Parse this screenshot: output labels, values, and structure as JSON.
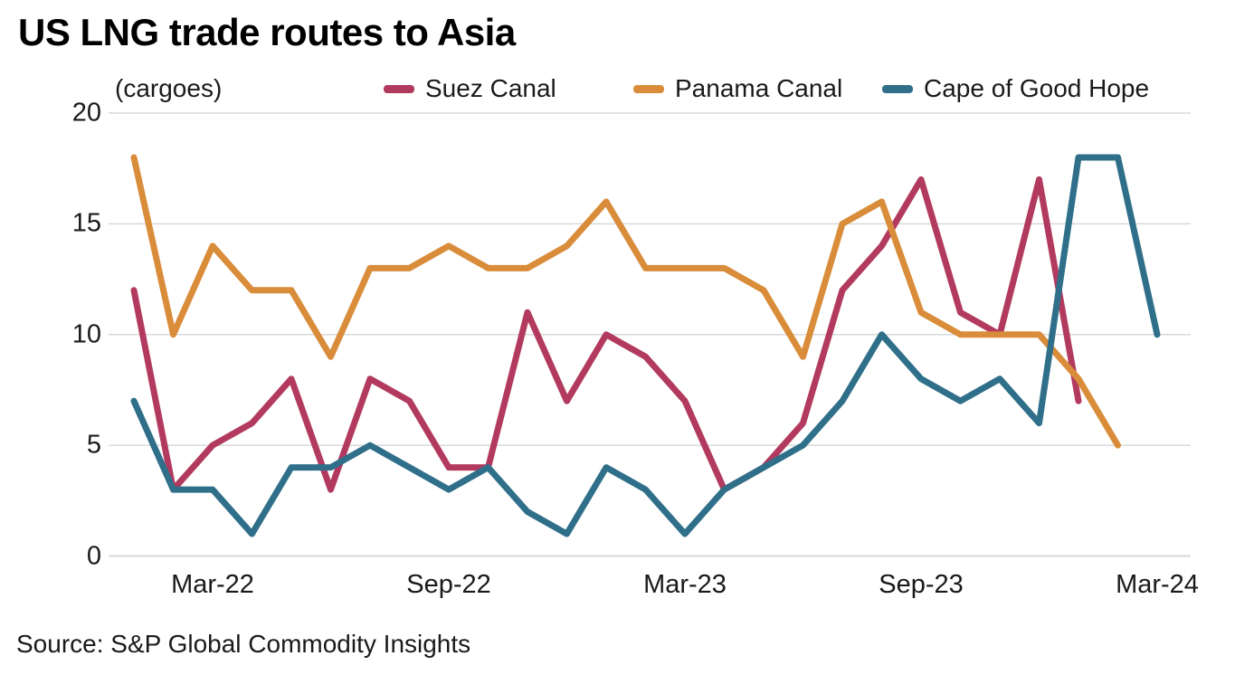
{
  "title": "US LNG trade routes to Asia",
  "unit_label": "(cargoes)",
  "source": "Source: S&P Global Commodity Insights",
  "colors": {
    "suez": "#b23a5f",
    "panama": "#d98c39",
    "cape": "#2f6f89",
    "grid": "#d9d9d9",
    "text": "#1a1a1a",
    "title": "#000000",
    "background": "#ffffff"
  },
  "legend": [
    {
      "label": "Suez Canal",
      "color": "#b23a5f"
    },
    {
      "label": "Panama Canal",
      "color": "#d98c39"
    },
    {
      "label": "Cape of Good Hope",
      "color": "#2f6f89"
    }
  ],
  "chart_data": {
    "type": "line",
    "title": "US LNG trade routes to Asia",
    "ylabel": "(cargoes)",
    "xlabel": "",
    "ylim": [
      0,
      20
    ],
    "yticks": [
      0,
      5,
      10,
      15,
      20
    ],
    "grid": "horizontal",
    "legend_position": "top",
    "x": [
      "Jan-22",
      "Feb-22",
      "Mar-22",
      "Apr-22",
      "May-22",
      "Jun-22",
      "Jul-22",
      "Aug-22",
      "Sep-22",
      "Oct-22",
      "Nov-22",
      "Dec-22",
      "Jan-23",
      "Feb-23",
      "Mar-23",
      "Apr-23",
      "May-23",
      "Jun-23",
      "Jul-23",
      "Aug-23",
      "Sep-23",
      "Oct-23",
      "Nov-23",
      "Dec-23",
      "Jan-24",
      "Feb-24",
      "Mar-24"
    ],
    "x_tick_labels": [
      "Mar-22",
      "Sep-22",
      "Mar-23",
      "Sep-23",
      "Mar-24"
    ],
    "x_tick_indices": [
      2,
      8,
      14,
      20,
      26
    ],
    "series": [
      {
        "name": "Suez Canal",
        "color": "#b23a5f",
        "values": [
          12,
          3,
          5,
          6,
          8,
          3,
          8,
          7,
          4,
          4,
          11,
          7,
          10,
          9,
          7,
          3,
          4,
          6,
          12,
          14,
          17,
          11,
          10,
          17,
          7,
          null,
          null
        ]
      },
      {
        "name": "Panama Canal",
        "color": "#d98c39",
        "values": [
          18,
          10,
          14,
          12,
          12,
          9,
          13,
          13,
          14,
          13,
          13,
          14,
          16,
          13,
          13,
          13,
          12,
          9,
          15,
          16,
          11,
          10,
          10,
          10,
          8,
          5,
          null
        ]
      },
      {
        "name": "Cape of Good Hope",
        "color": "#2f6f89",
        "values": [
          7,
          3,
          3,
          1,
          4,
          4,
          5,
          4,
          3,
          4,
          2,
          1,
          4,
          3,
          1,
          3,
          4,
          5,
          7,
          10,
          8,
          7,
          8,
          6,
          18,
          18,
          10
        ]
      }
    ]
  }
}
